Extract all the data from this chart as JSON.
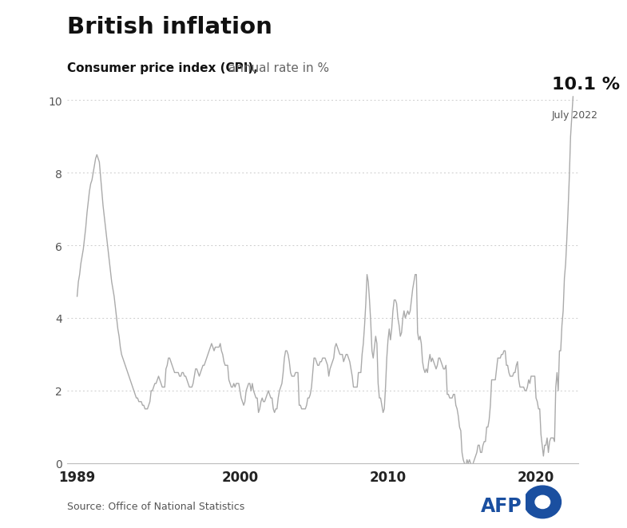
{
  "title": "British inflation",
  "subtitle_bold": "Consumer price index (CPI),",
  "subtitle_light": " annual rate in %",
  "annotation_value": "10.1 %",
  "annotation_date": "July 2022",
  "source": "Source: Office of National Statistics",
  "ylim": [
    0,
    10.5
  ],
  "yticks": [
    0,
    2,
    4,
    6,
    8,
    10
  ],
  "xticks": [
    1989,
    2000,
    2010,
    2020
  ],
  "line_color": "#aaaaaa",
  "grid_color": "#cccccc",
  "background_color": "#ffffff",
  "top_bar_color": "#111111",
  "afp_blue": "#1a4fa0",
  "cpi_data": {
    "dates": [
      1989.0,
      1989.083,
      1989.167,
      1989.25,
      1989.333,
      1989.417,
      1989.5,
      1989.583,
      1989.667,
      1989.75,
      1989.833,
      1989.917,
      1990.0,
      1990.083,
      1990.167,
      1990.25,
      1990.333,
      1990.417,
      1990.5,
      1990.583,
      1990.667,
      1990.75,
      1990.833,
      1990.917,
      1991.0,
      1991.083,
      1991.167,
      1991.25,
      1991.333,
      1991.417,
      1991.5,
      1991.583,
      1991.667,
      1991.75,
      1991.833,
      1991.917,
      1992.0,
      1992.083,
      1992.167,
      1992.25,
      1992.333,
      1992.417,
      1992.5,
      1992.583,
      1992.667,
      1992.75,
      1992.833,
      1992.917,
      1993.0,
      1993.083,
      1993.167,
      1993.25,
      1993.333,
      1993.417,
      1993.5,
      1993.583,
      1993.667,
      1993.75,
      1993.833,
      1993.917,
      1994.0,
      1994.083,
      1994.167,
      1994.25,
      1994.333,
      1994.417,
      1994.5,
      1994.583,
      1994.667,
      1994.75,
      1994.833,
      1994.917,
      1995.0,
      1995.083,
      1995.167,
      1995.25,
      1995.333,
      1995.417,
      1995.5,
      1995.583,
      1995.667,
      1995.75,
      1995.833,
      1995.917,
      1996.0,
      1996.083,
      1996.167,
      1996.25,
      1996.333,
      1996.417,
      1996.5,
      1996.583,
      1996.667,
      1996.75,
      1996.833,
      1996.917,
      1997.0,
      1997.083,
      1997.167,
      1997.25,
      1997.333,
      1997.417,
      1997.5,
      1997.583,
      1997.667,
      1997.75,
      1997.833,
      1997.917,
      1998.0,
      1998.083,
      1998.167,
      1998.25,
      1998.333,
      1998.417,
      1998.5,
      1998.583,
      1998.667,
      1998.75,
      1998.833,
      1998.917,
      1999.0,
      1999.083,
      1999.167,
      1999.25,
      1999.333,
      1999.417,
      1999.5,
      1999.583,
      1999.667,
      1999.75,
      1999.833,
      1999.917,
      2000.0,
      2000.083,
      2000.167,
      2000.25,
      2000.333,
      2000.417,
      2000.5,
      2000.583,
      2000.667,
      2000.75,
      2000.833,
      2000.917,
      2001.0,
      2001.083,
      2001.167,
      2001.25,
      2001.333,
      2001.417,
      2001.5,
      2001.583,
      2001.667,
      2001.75,
      2001.833,
      2001.917,
      2002.0,
      2002.083,
      2002.167,
      2002.25,
      2002.333,
      2002.417,
      2002.5,
      2002.583,
      2002.667,
      2002.75,
      2002.833,
      2002.917,
      2003.0,
      2003.083,
      2003.167,
      2003.25,
      2003.333,
      2003.417,
      2003.5,
      2003.583,
      2003.667,
      2003.75,
      2003.833,
      2003.917,
      2004.0,
      2004.083,
      2004.167,
      2004.25,
      2004.333,
      2004.417,
      2004.5,
      2004.583,
      2004.667,
      2004.75,
      2004.833,
      2004.917,
      2005.0,
      2005.083,
      2005.167,
      2005.25,
      2005.333,
      2005.417,
      2005.5,
      2005.583,
      2005.667,
      2005.75,
      2005.833,
      2005.917,
      2006.0,
      2006.083,
      2006.167,
      2006.25,
      2006.333,
      2006.417,
      2006.5,
      2006.583,
      2006.667,
      2006.75,
      2006.833,
      2006.917,
      2007.0,
      2007.083,
      2007.167,
      2007.25,
      2007.333,
      2007.417,
      2007.5,
      2007.583,
      2007.667,
      2007.75,
      2007.833,
      2007.917,
      2008.0,
      2008.083,
      2008.167,
      2008.25,
      2008.333,
      2008.417,
      2008.5,
      2008.583,
      2008.667,
      2008.75,
      2008.833,
      2008.917,
      2009.0,
      2009.083,
      2009.167,
      2009.25,
      2009.333,
      2009.417,
      2009.5,
      2009.583,
      2009.667,
      2009.75,
      2009.833,
      2009.917,
      2010.0,
      2010.083,
      2010.167,
      2010.25,
      2010.333,
      2010.417,
      2010.5,
      2010.583,
      2010.667,
      2010.75,
      2010.833,
      2010.917,
      2011.0,
      2011.083,
      2011.167,
      2011.25,
      2011.333,
      2011.417,
      2011.5,
      2011.583,
      2011.667,
      2011.75,
      2011.833,
      2011.917,
      2012.0,
      2012.083,
      2012.167,
      2012.25,
      2012.333,
      2012.417,
      2012.5,
      2012.583,
      2012.667,
      2012.75,
      2012.833,
      2012.917,
      2013.0,
      2013.083,
      2013.167,
      2013.25,
      2013.333,
      2013.417,
      2013.5,
      2013.583,
      2013.667,
      2013.75,
      2013.833,
      2013.917,
      2014.0,
      2014.083,
      2014.167,
      2014.25,
      2014.333,
      2014.417,
      2014.5,
      2014.583,
      2014.667,
      2014.75,
      2014.833,
      2014.917,
      2015.0,
      2015.083,
      2015.167,
      2015.25,
      2015.333,
      2015.417,
      2015.5,
      2015.583,
      2015.667,
      2015.75,
      2015.833,
      2015.917,
      2016.0,
      2016.083,
      2016.167,
      2016.25,
      2016.333,
      2016.417,
      2016.5,
      2016.583,
      2016.667,
      2016.75,
      2016.833,
      2016.917,
      2017.0,
      2017.083,
      2017.167,
      2017.25,
      2017.333,
      2017.417,
      2017.5,
      2017.583,
      2017.667,
      2017.75,
      2017.833,
      2017.917,
      2018.0,
      2018.083,
      2018.167,
      2018.25,
      2018.333,
      2018.417,
      2018.5,
      2018.583,
      2018.667,
      2018.75,
      2018.833,
      2018.917,
      2019.0,
      2019.083,
      2019.167,
      2019.25,
      2019.333,
      2019.417,
      2019.5,
      2019.583,
      2019.667,
      2019.75,
      2019.833,
      2019.917,
      2020.0,
      2020.083,
      2020.167,
      2020.25,
      2020.333,
      2020.417,
      2020.5,
      2020.583,
      2020.667,
      2020.75,
      2020.833,
      2020.917,
      2021.0,
      2021.083,
      2021.167,
      2021.25,
      2021.333,
      2021.417,
      2021.5,
      2021.583,
      2021.667,
      2021.75,
      2021.833,
      2021.917,
      2022.0,
      2022.083,
      2022.167,
      2022.25,
      2022.333,
      2022.5
    ],
    "values": [
      4.6,
      5.0,
      5.2,
      5.5,
      5.7,
      5.9,
      6.2,
      6.5,
      6.9,
      7.2,
      7.5,
      7.7,
      7.8,
      8.0,
      8.2,
      8.4,
      8.5,
      8.4,
      8.3,
      7.9,
      7.5,
      7.1,
      6.8,
      6.5,
      6.2,
      5.9,
      5.6,
      5.3,
      5.0,
      4.8,
      4.6,
      4.3,
      4.0,
      3.7,
      3.5,
      3.2,
      3.0,
      2.9,
      2.8,
      2.7,
      2.6,
      2.5,
      2.4,
      2.3,
      2.2,
      2.1,
      2.0,
      1.9,
      1.8,
      1.8,
      1.7,
      1.7,
      1.7,
      1.6,
      1.6,
      1.5,
      1.5,
      1.5,
      1.6,
      1.7,
      2.0,
      2.0,
      2.1,
      2.2,
      2.2,
      2.3,
      2.4,
      2.3,
      2.2,
      2.1,
      2.1,
      2.1,
      2.6,
      2.7,
      2.9,
      2.9,
      2.8,
      2.7,
      2.6,
      2.5,
      2.5,
      2.5,
      2.5,
      2.4,
      2.4,
      2.5,
      2.5,
      2.4,
      2.4,
      2.3,
      2.2,
      2.1,
      2.1,
      2.1,
      2.2,
      2.4,
      2.6,
      2.6,
      2.5,
      2.4,
      2.5,
      2.6,
      2.7,
      2.7,
      2.8,
      2.9,
      3.0,
      3.1,
      3.2,
      3.3,
      3.2,
      3.1,
      3.2,
      3.2,
      3.2,
      3.2,
      3.3,
      3.1,
      3.0,
      2.8,
      2.7,
      2.7,
      2.7,
      2.3,
      2.2,
      2.1,
      2.1,
      2.2,
      2.1,
      2.2,
      2.2,
      2.2,
      2.0,
      1.8,
      1.7,
      1.6,
      1.7,
      2.0,
      2.1,
      2.2,
      2.2,
      2.0,
      2.2,
      2.0,
      1.9,
      1.8,
      1.8,
      1.4,
      1.5,
      1.7,
      1.8,
      1.7,
      1.7,
      1.8,
      1.9,
      2.0,
      1.9,
      1.8,
      1.8,
      1.5,
      1.4,
      1.5,
      1.5,
      1.8,
      2.0,
      2.1,
      2.2,
      2.5,
      2.9,
      3.1,
      3.1,
      3.0,
      2.8,
      2.5,
      2.4,
      2.4,
      2.4,
      2.5,
      2.5,
      2.5,
      1.6,
      1.6,
      1.5,
      1.5,
      1.5,
      1.5,
      1.6,
      1.8,
      1.8,
      1.9,
      2.1,
      2.5,
      2.9,
      2.9,
      2.8,
      2.7,
      2.7,
      2.8,
      2.8,
      2.9,
      2.9,
      2.9,
      2.8,
      2.7,
      2.4,
      2.6,
      2.7,
      2.8,
      2.9,
      3.2,
      3.3,
      3.2,
      3.1,
      3.0,
      3.0,
      3.0,
      2.8,
      2.9,
      3.0,
      3.0,
      2.9,
      2.8,
      2.6,
      2.4,
      2.1,
      2.1,
      2.1,
      2.1,
      2.5,
      2.5,
      2.5,
      3.0,
      3.3,
      3.8,
      4.4,
      5.2,
      5.0,
      4.5,
      3.9,
      3.1,
      2.9,
      3.2,
      3.5,
      3.3,
      2.2,
      1.8,
      1.8,
      1.6,
      1.4,
      1.5,
      2.1,
      2.9,
      3.4,
      3.7,
      3.4,
      3.7,
      4.2,
      4.5,
      4.5,
      4.4,
      4.0,
      3.8,
      3.5,
      3.6,
      4.0,
      4.2,
      4.0,
      4.1,
      4.2,
      4.1,
      4.2,
      4.5,
      4.8,
      5.0,
      5.2,
      5.2,
      3.6,
      3.4,
      3.5,
      3.3,
      2.8,
      2.6,
      2.5,
      2.6,
      2.5,
      2.8,
      3.0,
      2.8,
      2.9,
      2.8,
      2.7,
      2.6,
      2.7,
      2.9,
      2.9,
      2.8,
      2.7,
      2.6,
      2.6,
      2.7,
      1.9,
      1.9,
      1.8,
      1.8,
      1.8,
      1.9,
      1.9,
      1.6,
      1.5,
      1.3,
      1.0,
      0.9,
      0.3,
      0.1,
      0.0,
      -0.1,
      0.1,
      0.0,
      0.1,
      0.0,
      -0.1,
      0.0,
      0.1,
      0.2,
      0.3,
      0.5,
      0.5,
      0.3,
      0.3,
      0.5,
      0.6,
      0.6,
      1.0,
      1.0,
      1.2,
      1.6,
      2.3,
      2.3,
      2.3,
      2.3,
      2.6,
      2.9,
      2.9,
      2.9,
      3.0,
      3.0,
      3.1,
      3.1,
      2.7,
      2.7,
      2.5,
      2.4,
      2.4,
      2.4,
      2.5,
      2.5,
      2.7,
      2.8,
      2.3,
      2.1,
      2.1,
      2.1,
      2.1,
      2.0,
      2.0,
      2.1,
      2.3,
      2.2,
      2.4,
      2.4,
      2.4,
      2.4,
      1.8,
      1.7,
      1.5,
      1.5,
      0.8,
      0.5,
      0.2,
      0.5,
      0.5,
      0.7,
      0.3,
      0.6,
      0.7,
      0.7,
      0.7,
      0.6,
      2.1,
      2.5,
      2.0,
      3.1,
      3.1,
      3.8,
      4.2,
      5.1,
      5.5,
      6.2,
      7.0,
      7.9,
      9.0,
      10.1
    ]
  }
}
